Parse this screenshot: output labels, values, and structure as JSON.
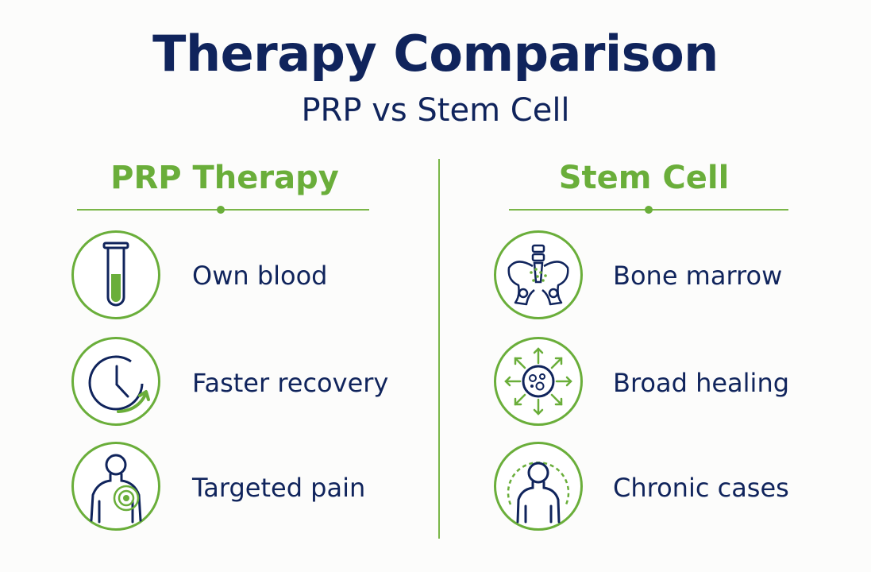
{
  "header": {
    "title": "Therapy Comparison",
    "subtitle": "PRP vs Stem Cell"
  },
  "colors": {
    "navy": "#10245c",
    "green": "#6aae3a"
  },
  "columns": [
    {
      "title": "PRP Therapy",
      "items": [
        {
          "label": "Own blood",
          "icon": "test-tube-icon"
        },
        {
          "label": "Faster recovery",
          "icon": "clock-icon"
        },
        {
          "label": "Targeted pain",
          "icon": "body-target-icon"
        }
      ]
    },
    {
      "title": "Stem Cell",
      "items": [
        {
          "label": "Bone marrow",
          "icon": "pelvis-icon"
        },
        {
          "label": "Broad healing",
          "icon": "cell-arrows-icon"
        },
        {
          "label": "Chronic cases",
          "icon": "body-aura-icon"
        }
      ]
    }
  ]
}
